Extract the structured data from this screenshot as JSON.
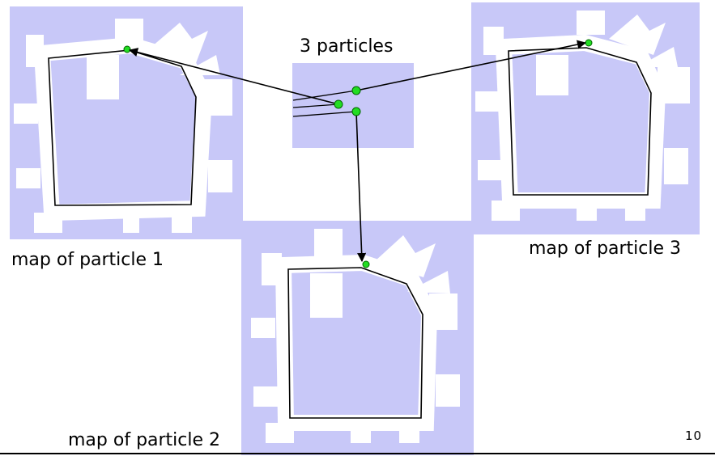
{
  "slide": {
    "center_label": "3 particles",
    "page_number": "10"
  },
  "maps": [
    {
      "label": "map of particle 1"
    },
    {
      "label": "map of particle 2"
    },
    {
      "label": "map of particle 3"
    }
  ],
  "colors": {
    "map_background": "#c8c8f8",
    "corridor": "#ffffff",
    "wall": "#000000",
    "particle": "#22dd22",
    "particle_outline": "#006600",
    "arrow": "#000000"
  }
}
